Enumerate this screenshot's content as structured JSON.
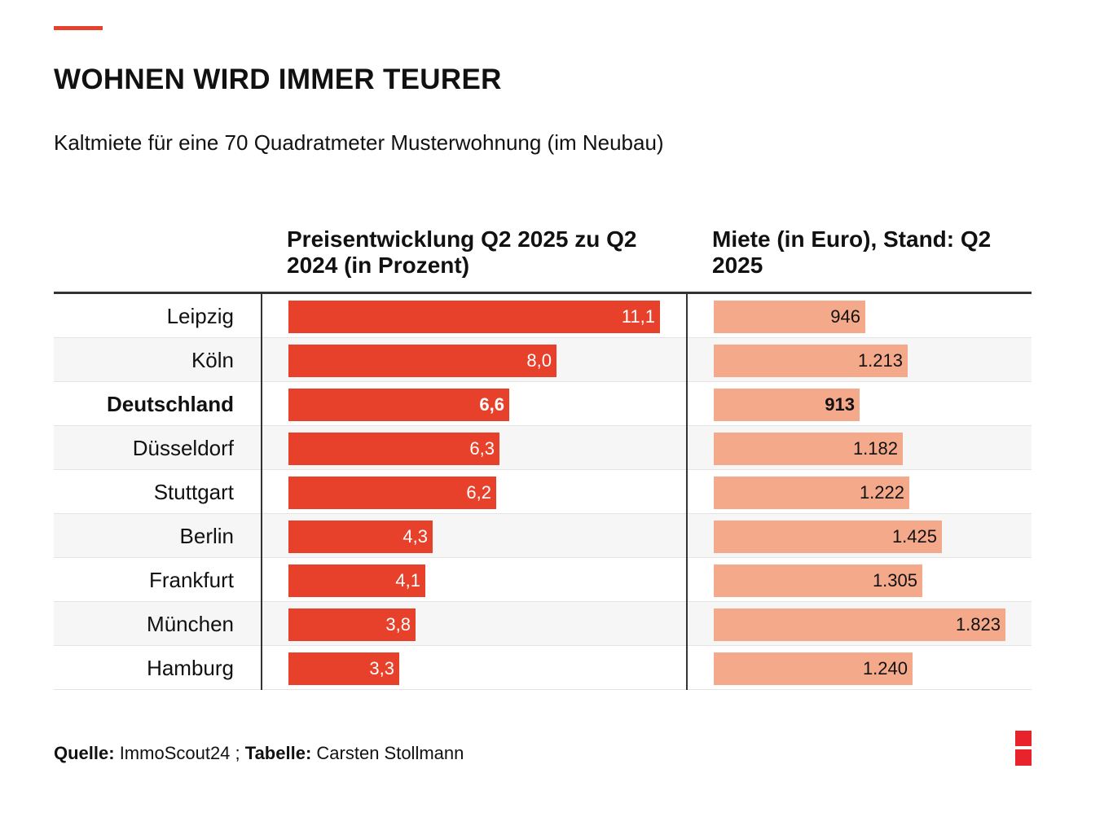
{
  "title": "WOHNEN WIRD IMMER TEURER",
  "subtitle": "Kaltmiete für eine 70 Quadratmeter Musterwohnung (im Neubau)",
  "colors": {
    "accent": "#e8412b",
    "change_bar": "#e8412b",
    "rent_bar": "#f4a98a",
    "logo": "#e8232b"
  },
  "chart_data": {
    "type": "bar",
    "orientation": "horizontal",
    "categories": [
      "Leipzig",
      "Köln",
      "Deutschland",
      "Düsseldorf",
      "Stuttgart",
      "Berlin",
      "Frankfurt",
      "München",
      "Hamburg"
    ],
    "highlight": "Deutschland",
    "series": [
      {
        "name": "Preisentwicklung Q2 2025 zu Q2 2024 (in Prozent)",
        "values": [
          11.1,
          8.0,
          6.6,
          6.3,
          6.2,
          4.3,
          4.1,
          3.8,
          3.3
        ],
        "labels": [
          "11,1",
          "8,0",
          "6,6",
          "6,3",
          "6,2",
          "4,3",
          "4,1",
          "3,8",
          "3,3"
        ],
        "max": 11.1
      },
      {
        "name": "Miete (in Euro), Stand: Q2 2025",
        "values": [
          946,
          1213,
          913,
          1182,
          1222,
          1425,
          1305,
          1823,
          1240
        ],
        "labels": [
          "946",
          "1.213",
          "913",
          "1.182",
          "1.222",
          "1.425",
          "1.305",
          "1.823",
          "1.240"
        ],
        "max": 1823
      }
    ]
  },
  "source": {
    "label1": "Quelle:",
    "text1": " ImmoScout24 ; ",
    "label2": "Tabelle:",
    "text2": " Carsten Stollmann"
  }
}
